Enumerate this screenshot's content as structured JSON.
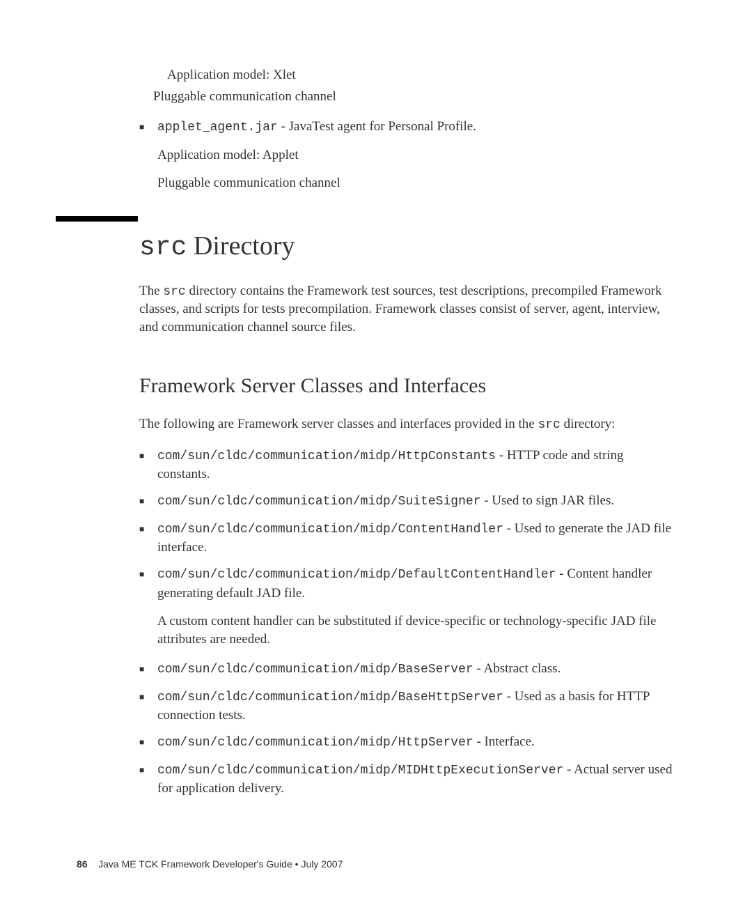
{
  "top": {
    "line1": "Application model: Xlet",
    "line2": "Pluggable communication channel",
    "bullet_code": "applet_agent.jar",
    "bullet_desc": " - JavaTest agent for Personal Profile.",
    "sub1": "Application model: Applet",
    "sub2": "Pluggable communication channel"
  },
  "section1": {
    "heading_code": "src",
    "heading_rest": " Directory",
    "para_pre": "The ",
    "para_code": "src",
    "para_post": " directory contains the Framework test sources, test descriptions, precompiled Framework classes, and scripts for tests precompilation. Framework classes consist of server, agent, interview, and communication channel source files."
  },
  "section2": {
    "heading": "Framework Server Classes and Interfaces",
    "intro_pre": "The following are Framework server classes and interfaces provided in the ",
    "intro_code": "src",
    "intro_post": " directory:",
    "items": [
      {
        "code": "com/sun/cldc/communication/midp/HttpConstants",
        "desc": " - HTTP code and string constants."
      },
      {
        "code": "com/sun/cldc/communication/midp/SuiteSigner",
        "desc": " - Used to sign JAR files."
      },
      {
        "code": "com/sun/cldc/communication/midp/ContentHandler",
        "desc": " - Used to generate the JAD file interface."
      },
      {
        "code": "com/sun/cldc/communication/midp/DefaultContentHandler",
        "desc": " - Content handler generating default JAD file.",
        "extra": "A custom content handler can be substituted if device-specific or technology-specific JAD file attributes are needed."
      },
      {
        "code": "com/sun/cldc/communication/midp/BaseServer",
        "desc": " - Abstract class."
      },
      {
        "code": "com/sun/cldc/communication/midp/BaseHttpServer",
        "desc": " - Used as a basis for HTTP connection tests."
      },
      {
        "code": "com/sun/cldc/communication/midp/HttpServer",
        "desc": " - Interface."
      },
      {
        "code": "com/sun/cldc/communication/midp/MIDHttpExecutionServer",
        "desc": " - Actual server used for application delivery."
      }
    ]
  },
  "footer": {
    "page": "86",
    "title": "Java ME TCK Framework Developer's Guide  •  July 2007"
  }
}
